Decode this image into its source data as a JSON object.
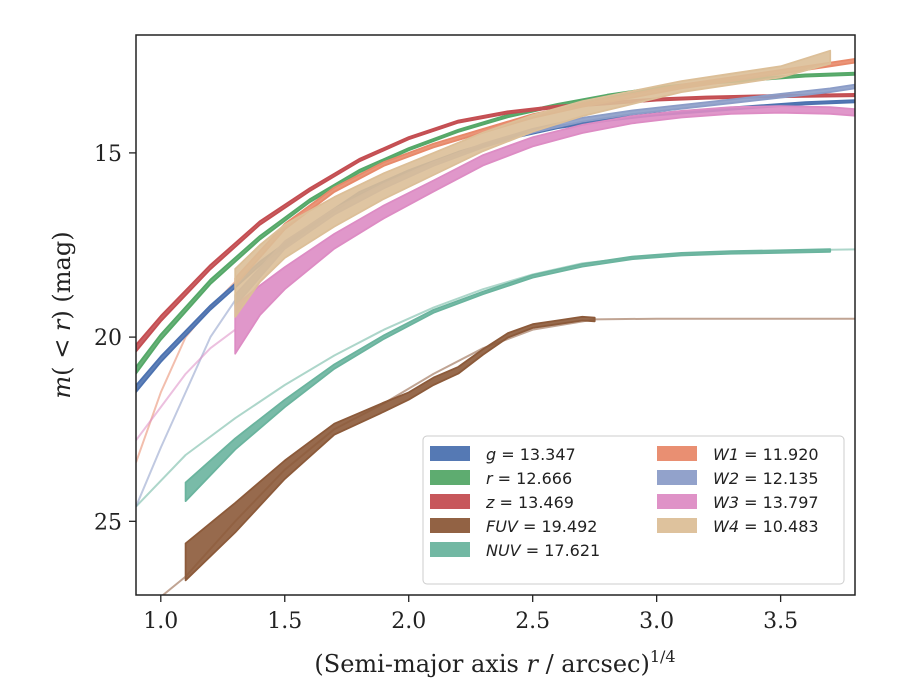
{
  "chart_data": {
    "type": "line",
    "title": "",
    "xlabel_main": "(Semi-major axis ",
    "xlabel_var": "r",
    "xlabel_tail": " / arcsec)",
    "xlabel_exp": "1/4",
    "ylabel_m": "m",
    "ylabel_r": "r",
    "ylabel_open": "(",
    "ylabel_lt": " < ",
    "ylabel_close": ")",
    "ylabel_unit": " (mag)",
    "xlim": [
      0.9,
      3.8
    ],
    "ylim": [
      27.0,
      11.8
    ],
    "y_inverted": true,
    "grid": false,
    "legend_position": "lower-right",
    "xticks": [
      {
        "v": 1.0,
        "label": "1.0"
      },
      {
        "v": 1.5,
        "label": "1.5"
      },
      {
        "v": 2.0,
        "label": "2.0"
      },
      {
        "v": 2.5,
        "label": "2.5"
      },
      {
        "v": 3.0,
        "label": "3.0"
      },
      {
        "v": 3.5,
        "label": "3.5"
      }
    ],
    "yticks": [
      {
        "v": 15,
        "label": "15"
      },
      {
        "v": 20,
        "label": "20"
      },
      {
        "v": 25,
        "label": "25"
      }
    ],
    "series": [
      {
        "name": "g",
        "legend_value": "= 13.347",
        "color": "#4c72b0",
        "band_x": [
          0.9,
          1.0,
          1.2,
          1.4,
          1.6,
          1.8,
          2.0,
          2.2,
          2.4,
          2.6,
          2.8,
          3.0,
          3.2,
          3.4,
          3.6,
          3.8
        ],
        "band_y": [
          21.4,
          20.6,
          19.2,
          18.0,
          17.0,
          16.1,
          15.5,
          15.0,
          14.6,
          14.3,
          14.1,
          13.95,
          13.85,
          13.75,
          13.65,
          13.6
        ],
        "band_w": [
          0.18,
          0.15,
          0.12,
          0.1,
          0.08,
          0.07,
          0.06,
          0.06,
          0.06,
          0.06,
          0.06,
          0.06,
          0.06,
          0.06,
          0.06,
          0.06
        ],
        "ext_x": [],
        "ext_y": []
      },
      {
        "name": "r",
        "legend_value": "= 12.666",
        "color": "#55a868",
        "band_x": [
          0.9,
          1.0,
          1.2,
          1.4,
          1.6,
          1.8,
          2.0,
          2.2,
          2.4,
          2.6,
          2.8,
          3.0,
          3.2,
          3.4,
          3.6,
          3.8
        ],
        "band_y": [
          20.9,
          20.0,
          18.5,
          17.3,
          16.3,
          15.5,
          14.9,
          14.4,
          14.0,
          13.7,
          13.45,
          13.25,
          13.1,
          13.0,
          12.9,
          12.85
        ],
        "band_w": [
          0.18,
          0.15,
          0.12,
          0.1,
          0.08,
          0.07,
          0.06,
          0.06,
          0.06,
          0.06,
          0.06,
          0.06,
          0.06,
          0.06,
          0.06,
          0.06
        ],
        "ext_x": [],
        "ext_y": []
      },
      {
        "name": "z",
        "legend_value": "= 13.469",
        "color": "#c44e52",
        "band_x": [
          0.9,
          1.0,
          1.2,
          1.4,
          1.6,
          1.8,
          2.0,
          2.2,
          2.4,
          2.6,
          2.8,
          3.0,
          3.2,
          3.4,
          3.6,
          3.8
        ],
        "band_y": [
          20.3,
          19.5,
          18.1,
          16.9,
          16.0,
          15.2,
          14.6,
          14.15,
          13.9,
          13.75,
          13.65,
          13.55,
          13.5,
          13.47,
          13.45,
          13.43
        ],
        "band_w": [
          0.18,
          0.15,
          0.12,
          0.1,
          0.08,
          0.07,
          0.06,
          0.06,
          0.06,
          0.06,
          0.06,
          0.06,
          0.06,
          0.06,
          0.06,
          0.06
        ],
        "ext_x": [],
        "ext_y": []
      },
      {
        "name": "FUV",
        "legend_value": "= 19.492",
        "color": "#8c5a3a",
        "band_x": [
          1.1,
          1.3,
          1.5,
          1.7,
          1.9,
          2.0,
          2.1,
          2.2,
          2.3,
          2.4,
          2.5,
          2.6,
          2.7,
          2.75
        ],
        "band_y": [
          26.1,
          24.9,
          23.6,
          22.5,
          21.9,
          21.6,
          21.2,
          20.9,
          20.4,
          19.95,
          19.7,
          19.6,
          19.5,
          19.52
        ],
        "band_w": [
          1.0,
          0.8,
          0.5,
          0.3,
          0.25,
          0.2,
          0.2,
          0.18,
          0.15,
          0.12,
          0.1,
          0.1,
          0.1,
          0.1
        ],
        "ext_x": [
          0.9,
          1.1,
          1.3,
          1.5,
          1.7,
          1.9,
          2.1,
          2.3,
          2.5,
          2.75,
          3.0,
          3.5,
          3.8
        ],
        "ext_y": [
          27.6,
          26.5,
          25.0,
          23.6,
          22.5,
          21.8,
          21.0,
          20.3,
          19.8,
          19.52,
          19.5,
          19.5,
          19.5
        ]
      },
      {
        "name": "NUV",
        "legend_value": "= 17.621",
        "color": "#6ab49e",
        "band_x": [
          1.1,
          1.3,
          1.5,
          1.7,
          1.9,
          2.1,
          2.3,
          2.5,
          2.7,
          2.9,
          3.1,
          3.3,
          3.5,
          3.7
        ],
        "band_y": [
          24.2,
          22.9,
          21.8,
          20.8,
          20.0,
          19.3,
          18.8,
          18.35,
          18.05,
          17.85,
          17.75,
          17.7,
          17.68,
          17.65
        ],
        "band_w": [
          0.5,
          0.3,
          0.2,
          0.12,
          0.1,
          0.08,
          0.07,
          0.07,
          0.07,
          0.07,
          0.07,
          0.07,
          0.07,
          0.07
        ],
        "ext_x": [
          0.9,
          1.1,
          1.3,
          1.5,
          1.7,
          1.9,
          2.1,
          2.3,
          2.5,
          2.7,
          2.9,
          3.1,
          3.3,
          3.5,
          3.7,
          3.8
        ],
        "ext_y": [
          24.6,
          23.2,
          22.2,
          21.3,
          20.5,
          19.8,
          19.2,
          18.7,
          18.3,
          18.0,
          17.85,
          17.75,
          17.7,
          17.66,
          17.63,
          17.62
        ]
      },
      {
        "name": "W1",
        "legend_value": "= 11.920",
        "color": "#e8896a",
        "band_x": [
          1.3,
          1.5,
          1.7,
          1.9,
          2.1,
          2.3,
          2.5,
          2.7,
          2.9,
          3.1,
          3.3,
          3.5,
          3.7,
          3.8
        ],
        "band_y": [
          18.5,
          17.0,
          16.0,
          15.3,
          14.8,
          14.4,
          14.0,
          13.7,
          13.45,
          13.2,
          13.0,
          12.8,
          12.6,
          12.5
        ],
        "band_w": [
          0.2,
          0.15,
          0.12,
          0.1,
          0.1,
          0.1,
          0.1,
          0.1,
          0.1,
          0.1,
          0.1,
          0.1,
          0.1,
          0.1
        ],
        "ext_x": [
          0.9,
          1.0,
          1.1,
          1.2,
          1.3
        ],
        "ext_y": [
          23.4,
          21.5,
          20.0,
          19.2,
          18.5
        ]
      },
      {
        "name": "W2",
        "legend_value": "= 12.135",
        "color": "#8c9dc8",
        "band_x": [
          1.3,
          1.5,
          1.7,
          1.9,
          2.1,
          2.3,
          2.5,
          2.7,
          2.9,
          3.1,
          3.3,
          3.5,
          3.7,
          3.8
        ],
        "band_y": [
          19.0,
          17.5,
          16.6,
          15.9,
          15.3,
          14.8,
          14.4,
          14.1,
          13.9,
          13.75,
          13.6,
          13.45,
          13.3,
          13.2
        ],
        "band_w": [
          0.3,
          0.2,
          0.15,
          0.12,
          0.1,
          0.1,
          0.1,
          0.1,
          0.1,
          0.1,
          0.1,
          0.1,
          0.1,
          0.1
        ],
        "ext_x": [
          0.9,
          1.0,
          1.1,
          1.2,
          1.3
        ],
        "ext_y": [
          24.6,
          23.0,
          21.5,
          20.0,
          19.0
        ]
      },
      {
        "name": "W3",
        "legend_value": "= 13.797",
        "color": "#dd8cc4",
        "band_x": [
          1.3,
          1.4,
          1.5,
          1.7,
          1.9,
          2.1,
          2.3,
          2.5,
          2.7,
          2.9,
          3.1,
          3.3,
          3.5,
          3.7,
          3.8
        ],
        "band_y": [
          19.8,
          19.0,
          18.4,
          17.4,
          16.6,
          15.9,
          15.2,
          14.7,
          14.35,
          14.1,
          13.95,
          13.85,
          13.82,
          13.85,
          13.9
        ],
        "band_w": [
          1.3,
          0.8,
          0.6,
          0.4,
          0.35,
          0.3,
          0.28,
          0.25,
          0.22,
          0.2,
          0.18,
          0.18,
          0.18,
          0.18,
          0.18
        ],
        "ext_x": [
          0.9,
          1.0,
          1.1,
          1.2,
          1.3
        ],
        "ext_y": [
          22.8,
          21.9,
          21.0,
          20.3,
          19.8
        ]
      },
      {
        "name": "W4",
        "legend_value": "= 10.483",
        "color": "#dcbf98",
        "band_x": [
          1.3,
          1.4,
          1.5,
          1.7,
          1.9,
          2.1,
          2.3,
          2.5,
          2.7,
          2.9,
          3.1,
          3.3,
          3.5,
          3.7
        ],
        "band_y": [
          18.8,
          18.0,
          17.4,
          16.6,
          15.9,
          15.3,
          14.7,
          14.2,
          13.8,
          13.5,
          13.2,
          13.0,
          12.8,
          12.4
        ],
        "band_w": [
          1.3,
          1.0,
          0.9,
          0.8,
          0.7,
          0.6,
          0.5,
          0.45,
          0.4,
          0.35,
          0.3,
          0.3,
          0.3,
          0.35
        ],
        "ext_x": [],
        "ext_y": []
      }
    ]
  }
}
